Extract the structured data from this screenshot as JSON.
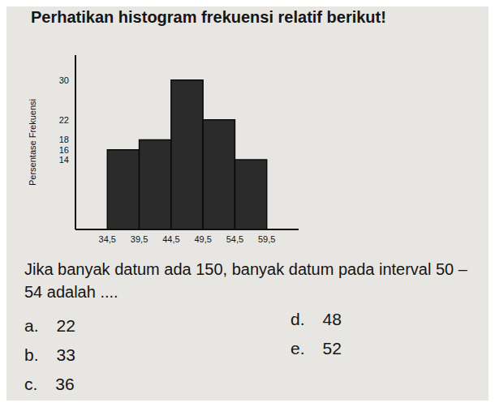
{
  "header": "Perhatikan histogram frekuensi relatif berikut!",
  "chart_data": {
    "type": "histogram",
    "y_label": "Persentase Frekuensi",
    "bins": [
      34.5,
      39.5,
      44.5,
      49.5,
      54.5,
      59.5
    ],
    "values": [
      16,
      18,
      30,
      22,
      14
    ],
    "color": "#2b2b2b",
    "xlim": [
      29.5,
      64.5
    ],
    "xticks": [
      {
        "value": 34.5,
        "label": "34,5"
      },
      {
        "value": 39.5,
        "label": "39,5"
      },
      {
        "value": 44.5,
        "label": "44,5"
      },
      {
        "value": 49.5,
        "label": "49,5"
      },
      {
        "value": 54.5,
        "label": "54,5"
      },
      {
        "value": 59.5,
        "label": "59,5"
      }
    ],
    "ylim": [
      0,
      35
    ],
    "yticks": [
      14,
      16,
      18,
      22,
      30
    ],
    "grid": false
  },
  "question": "Jika banyak datum ada 150, banyak datum pada interval 50 – 54 adalah ....",
  "options": [
    {
      "label": "a.",
      "value": 22
    },
    {
      "label": "b.",
      "value": 33
    },
    {
      "label": "c.",
      "value": 36
    },
    {
      "label": "d.",
      "value": 48
    },
    {
      "label": "e.",
      "value": 52
    }
  ]
}
